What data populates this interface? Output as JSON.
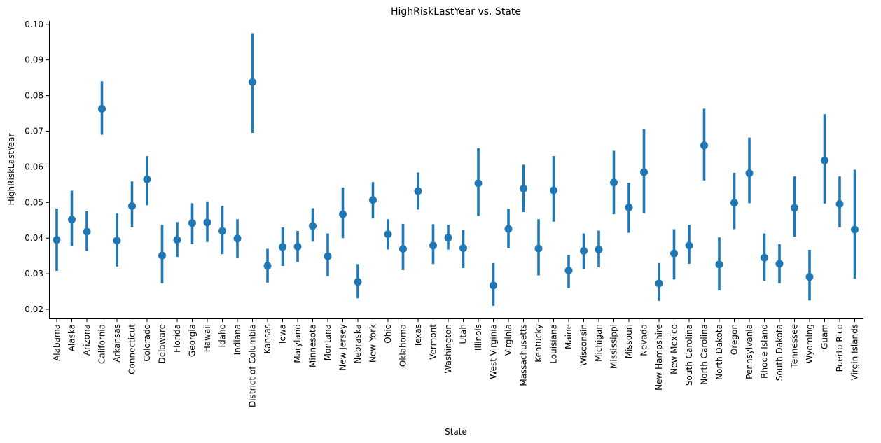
{
  "chart_data": {
    "type": "pointplot",
    "title": "HighRiskLastYear vs. State",
    "xlabel": "State",
    "ylabel": "HighRiskLastYear",
    "ylim": [
      0.017,
      0.1005
    ],
    "yticks": [
      0.02,
      0.03,
      0.04,
      0.05,
      0.06,
      0.07,
      0.08,
      0.09,
      0.1
    ],
    "ytick_labels": [
      "0.02",
      "0.03",
      "0.04",
      "0.05",
      "0.06",
      "0.07",
      "0.08",
      "0.09",
      "0.10"
    ],
    "grid": false,
    "color": "#1f77b4",
    "points": [
      {
        "state": "Alabama",
        "mean": 0.0395,
        "ci_low": 0.0308,
        "ci_high": 0.0483
      },
      {
        "state": "Alaska",
        "mean": 0.0452,
        "ci_low": 0.0378,
        "ci_high": 0.0533
      },
      {
        "state": "Arizona",
        "mean": 0.0418,
        "ci_low": 0.0364,
        "ci_high": 0.0475
      },
      {
        "state": "California",
        "mean": 0.0763,
        "ci_low": 0.069,
        "ci_high": 0.084
      },
      {
        "state": "Arkansas",
        "mean": 0.0393,
        "ci_low": 0.032,
        "ci_high": 0.0469
      },
      {
        "state": "Connecticut",
        "mean": 0.049,
        "ci_low": 0.043,
        "ci_high": 0.0559
      },
      {
        "state": "Colorado",
        "mean": 0.0565,
        "ci_low": 0.0492,
        "ci_high": 0.063
      },
      {
        "state": "Delaware",
        "mean": 0.0351,
        "ci_low": 0.0273,
        "ci_high": 0.0437
      },
      {
        "state": "Florida",
        "mean": 0.0395,
        "ci_low": 0.0347,
        "ci_high": 0.0445
      },
      {
        "state": "Georgia",
        "mean": 0.0442,
        "ci_low": 0.0383,
        "ci_high": 0.0498
      },
      {
        "state": "Hawaii",
        "mean": 0.0444,
        "ci_low": 0.0389,
        "ci_high": 0.0503
      },
      {
        "state": "Idaho",
        "mean": 0.042,
        "ci_low": 0.0355,
        "ci_high": 0.049
      },
      {
        "state": "Indiana",
        "mean": 0.0399,
        "ci_low": 0.0345,
        "ci_high": 0.0453
      },
      {
        "state": "District of Columbia",
        "mean": 0.0838,
        "ci_low": 0.0695,
        "ci_high": 0.0975
      },
      {
        "state": "Kansas",
        "mean": 0.0322,
        "ci_low": 0.0275,
        "ci_high": 0.037
      },
      {
        "state": "Iowa",
        "mean": 0.0375,
        "ci_low": 0.0322,
        "ci_high": 0.043
      },
      {
        "state": "Maryland",
        "mean": 0.0376,
        "ci_low": 0.0333,
        "ci_high": 0.042
      },
      {
        "state": "Minnesota",
        "mean": 0.0434,
        "ci_low": 0.039,
        "ci_high": 0.0484
      },
      {
        "state": "Montana",
        "mean": 0.0349,
        "ci_low": 0.0293,
        "ci_high": 0.0413
      },
      {
        "state": "New Jersey",
        "mean": 0.0467,
        "ci_low": 0.04,
        "ci_high": 0.0542
      },
      {
        "state": "Nebraska",
        "mean": 0.0277,
        "ci_low": 0.0231,
        "ci_high": 0.0327
      },
      {
        "state": "New York",
        "mean": 0.0507,
        "ci_low": 0.0455,
        "ci_high": 0.0557
      },
      {
        "state": "Ohio",
        "mean": 0.0411,
        "ci_low": 0.0368,
        "ci_high": 0.0453
      },
      {
        "state": "Oklahoma",
        "mean": 0.037,
        "ci_low": 0.031,
        "ci_high": 0.044
      },
      {
        "state": "Texas",
        "mean": 0.0532,
        "ci_low": 0.048,
        "ci_high": 0.0584
      },
      {
        "state": "Vermont",
        "mean": 0.0379,
        "ci_low": 0.0327,
        "ci_high": 0.0439
      },
      {
        "state": "Washington",
        "mean": 0.0401,
        "ci_low": 0.0368,
        "ci_high": 0.0437
      },
      {
        "state": "Utah",
        "mean": 0.0372,
        "ci_low": 0.0316,
        "ci_high": 0.0423
      },
      {
        "state": "Illinois",
        "mean": 0.0554,
        "ci_low": 0.0462,
        "ci_high": 0.0652
      },
      {
        "state": "West Virginia",
        "mean": 0.0267,
        "ci_low": 0.021,
        "ci_high": 0.033
      },
      {
        "state": "Virginia",
        "mean": 0.0426,
        "ci_low": 0.0371,
        "ci_high": 0.0482
      },
      {
        "state": "Massachusetts",
        "mean": 0.0539,
        "ci_low": 0.0473,
        "ci_high": 0.0606
      },
      {
        "state": "Kentucky",
        "mean": 0.0371,
        "ci_low": 0.0295,
        "ci_high": 0.0453
      },
      {
        "state": "Louisiana",
        "mean": 0.0534,
        "ci_low": 0.0446,
        "ci_high": 0.063
      },
      {
        "state": "Maine",
        "mean": 0.0309,
        "ci_low": 0.0259,
        "ci_high": 0.0353
      },
      {
        "state": "Wisconsin",
        "mean": 0.0364,
        "ci_low": 0.0313,
        "ci_high": 0.0413
      },
      {
        "state": "Michigan",
        "mean": 0.0368,
        "ci_low": 0.0318,
        "ci_high": 0.0421
      },
      {
        "state": "Mississippi",
        "mean": 0.0556,
        "ci_low": 0.0467,
        "ci_high": 0.0645
      },
      {
        "state": "Missouri",
        "mean": 0.0486,
        "ci_low": 0.0415,
        "ci_high": 0.0555
      },
      {
        "state": "Nevada",
        "mean": 0.0585,
        "ci_low": 0.047,
        "ci_high": 0.0706
      },
      {
        "state": "New Hampshire",
        "mean": 0.0273,
        "ci_low": 0.0224,
        "ci_high": 0.033
      },
      {
        "state": "New Mexico",
        "mean": 0.0357,
        "ci_low": 0.0284,
        "ci_high": 0.0425
      },
      {
        "state": "South Carolina",
        "mean": 0.0379,
        "ci_low": 0.0328,
        "ci_high": 0.0437
      },
      {
        "state": "North Carolina",
        "mean": 0.066,
        "ci_low": 0.0562,
        "ci_high": 0.0763
      },
      {
        "state": "North Dakota",
        "mean": 0.0326,
        "ci_low": 0.0253,
        "ci_high": 0.0402
      },
      {
        "state": "Oregon",
        "mean": 0.0499,
        "ci_low": 0.0425,
        "ci_high": 0.0583
      },
      {
        "state": "Pennsylvania",
        "mean": 0.0582,
        "ci_low": 0.0498,
        "ci_high": 0.0682
      },
      {
        "state": "Rhode Island",
        "mean": 0.0345,
        "ci_low": 0.028,
        "ci_high": 0.0413
      },
      {
        "state": "South Dakota",
        "mean": 0.0328,
        "ci_low": 0.0273,
        "ci_high": 0.0383
      },
      {
        "state": "Tennessee",
        "mean": 0.0485,
        "ci_low": 0.0404,
        "ci_high": 0.0573
      },
      {
        "state": "Wyoming",
        "mean": 0.0291,
        "ci_low": 0.0225,
        "ci_high": 0.0367
      },
      {
        "state": "Guam",
        "mean": 0.0618,
        "ci_low": 0.0497,
        "ci_high": 0.0748
      },
      {
        "state": "Puerto Rico",
        "mean": 0.0496,
        "ci_low": 0.043,
        "ci_high": 0.0573
      },
      {
        "state": "Virgin Islands",
        "mean": 0.0424,
        "ci_low": 0.0286,
        "ci_high": 0.0592
      }
    ]
  }
}
